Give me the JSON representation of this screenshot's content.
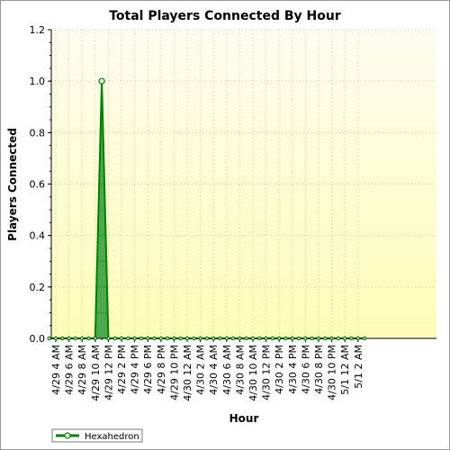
{
  "chart_data": {
    "type": "area",
    "title": "Total Players Connected By Hour",
    "xlabel": "Hour",
    "ylabel": "Players Connected",
    "ylim": [
      0,
      1.2
    ],
    "yticks": [
      "0.0",
      "0.2",
      "0.4",
      "0.6",
      "0.8",
      "1.0",
      "1.2"
    ],
    "x_tick_labels": [
      "4/29 4 AM",
      "4/29 6 AM",
      "4/29 8 AM",
      "4/29 10 AM",
      "4/29 12 PM",
      "4/29 2 PM",
      "4/29 4 PM",
      "4/29 6 PM",
      "4/29 8 PM",
      "4/29 10 PM",
      "4/30 12 AM",
      "4/30 2 AM",
      "4/30 4 AM",
      "4/30 6 AM",
      "4/30 8 AM",
      "4/30 10 AM",
      "4/30 12 PM",
      "4/30 2 PM",
      "4/30 4 PM",
      "4/30 6 PM",
      "4/30 8 PM",
      "4/30 10 PM",
      "5/1 12 AM",
      "5/1 2 AM"
    ],
    "x": [
      "4/29 3 AM",
      "4/29 4 AM",
      "4/29 5 AM",
      "4/29 6 AM",
      "4/29 7 AM",
      "4/29 8 AM",
      "4/29 9 AM",
      "4/29 10 AM",
      "4/29 11 AM",
      "4/29 12 PM",
      "4/29 1 PM",
      "4/29 2 PM",
      "4/29 3 PM",
      "4/29 4 PM",
      "4/29 5 PM",
      "4/29 6 PM",
      "4/29 7 PM",
      "4/29 8 PM",
      "4/29 9 PM",
      "4/29 10 PM",
      "4/29 11 PM",
      "4/30 12 AM",
      "4/30 1 AM",
      "4/30 2 AM",
      "4/30 3 AM",
      "4/30 4 AM",
      "4/30 5 AM",
      "4/30 6 AM",
      "4/30 7 AM",
      "4/30 8 AM",
      "4/30 9 AM",
      "4/30 10 AM",
      "4/30 11 AM",
      "4/30 12 PM",
      "4/30 1 PM",
      "4/30 2 PM",
      "4/30 3 PM",
      "4/30 4 PM",
      "4/30 5 PM",
      "4/30 6 PM",
      "4/30 7 PM",
      "4/30 8 PM",
      "4/30 9 PM",
      "4/30 10 PM",
      "4/30 11 PM",
      "5/1 12 AM",
      "5/1 1 AM",
      "5/1 2 AM",
      "5/1 3 AM"
    ],
    "series": [
      {
        "name": "Hexahedron",
        "values": [
          0,
          0,
          0,
          0,
          0,
          0,
          0,
          0,
          1,
          0,
          0,
          0,
          0,
          0,
          0,
          0,
          0,
          0,
          0,
          0,
          0,
          0,
          0,
          0,
          0,
          0,
          0,
          0,
          0,
          0,
          0,
          0,
          0,
          0,
          0,
          0,
          0,
          0,
          0,
          0,
          0,
          0,
          0,
          0,
          0,
          0,
          0,
          0,
          0
        ]
      }
    ],
    "grid": true,
    "legend": "bottom-left",
    "colors": {
      "plot_bg_top": "#fdfdf0",
      "plot_bg_bottom": "#fdfdb8",
      "series_line": "#008000",
      "series_fill": "#4ea84e",
      "grid": "#c8c8a0"
    }
  }
}
